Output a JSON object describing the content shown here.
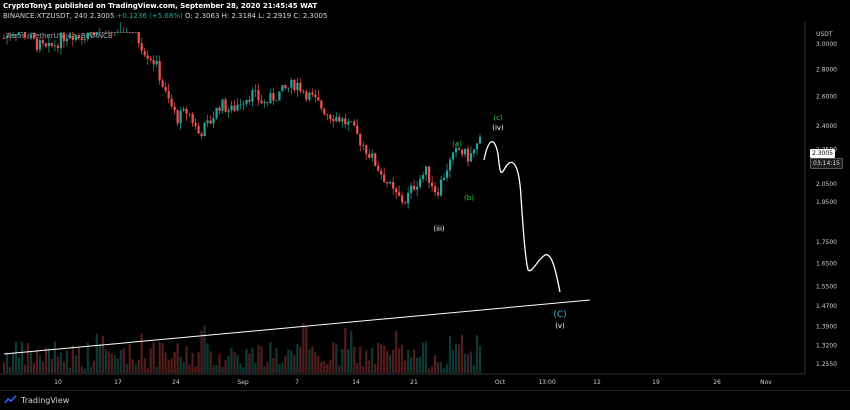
{
  "header": {
    "publisher_line": "CryptoTony1 published on TradingView.com, September 28, 2020 21:45:45 WAT",
    "symbol_line": "BINANCE:XTZUSDT, 240",
    "last": "2.3005",
    "change": "+0.1236 (+5.68%)",
    "ohlc": "O: 2.3063  H: 2.3184  L: 2.2919  C: 2.3005"
  },
  "watermark": "Tezos / TetherUS, 4h, BINANCE",
  "axis": {
    "currency": "USDT",
    "price_ticks": [
      "3.0000",
      "2.8000",
      "2.6000",
      "2.4000",
      "2.2500",
      "2.0500",
      "1.9500",
      "1.7500",
      "1.6500",
      "1.5500",
      "1.4700",
      "1.3900",
      "1.3200",
      "1.2550"
    ],
    "time_ticks": [
      "10",
      "17",
      "24",
      "Sep",
      "7",
      "14",
      "21",
      "Oct",
      "13:00",
      "12",
      "19",
      "26",
      "Nov"
    ]
  },
  "price_tags": {
    "current": "2.3005",
    "countdown": "03:14:15"
  },
  "labels": {
    "wave_c_small": "(c)",
    "wave_iv": "(iv)",
    "wave_a": "(a)",
    "wave_b": "(b)",
    "wave_iii": "(iii)",
    "wave_C_big": "(C)",
    "wave_v": "(v)"
  },
  "footer": {
    "brand": "TradingView"
  },
  "colors": {
    "up": "#26a69a",
    "down": "#ef5350",
    "green_label": "#2ecc40",
    "cyan_label": "#2fb5d3",
    "path": "#ffffff"
  },
  "chart_data": {
    "type": "candlestick",
    "title": "Tezos / TetherUS, 4h, BINANCE",
    "ylabel": "USDT",
    "ylim": [
      1.255,
      3.1
    ],
    "log_scale": true,
    "grid": false,
    "approx_closes": [
      3.05,
      3.12,
      3.08,
      3.0,
      2.95,
      3.02,
      3.1,
      3.06,
      3.11,
      3.15,
      3.12,
      3.2,
      3.1,
      2.95,
      2.85,
      2.6,
      2.45,
      2.5,
      2.35,
      2.42,
      2.55,
      2.5,
      2.58,
      2.62,
      2.55,
      2.6,
      2.65,
      2.7,
      2.62,
      2.55,
      2.48,
      2.45,
      2.4,
      2.3,
      2.2,
      2.1,
      2.0,
      1.95,
      2.05,
      2.12,
      2.0,
      2.15,
      2.25,
      2.2,
      2.3
    ]
  }
}
